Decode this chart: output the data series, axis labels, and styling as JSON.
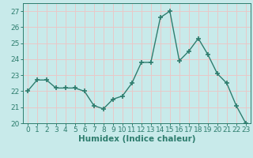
{
  "x": [
    0,
    1,
    2,
    3,
    4,
    5,
    6,
    7,
    8,
    9,
    10,
    11,
    12,
    13,
    14,
    15,
    16,
    17,
    18,
    19,
    20,
    21,
    22,
    23
  ],
  "y": [
    22.0,
    22.7,
    22.7,
    22.2,
    22.2,
    22.2,
    22.0,
    21.1,
    20.9,
    21.5,
    21.7,
    22.5,
    23.8,
    23.8,
    26.6,
    27.0,
    23.9,
    24.5,
    25.3,
    24.3,
    23.1,
    22.5,
    21.1,
    20.0
  ],
  "line_color": "#2e7d6e",
  "marker": "+",
  "markersize": 4,
  "markeredgewidth": 1.2,
  "linewidth": 1.0,
  "bgcolor": "#c8eaea",
  "grid_color": "#e8c8c8",
  "xlabel": "Humidex (Indice chaleur)",
  "ylim": [
    20,
    27.5
  ],
  "yticks": [
    20,
    21,
    22,
    23,
    24,
    25,
    26,
    27
  ],
  "xticks": [
    0,
    1,
    2,
    3,
    4,
    5,
    6,
    7,
    8,
    9,
    10,
    11,
    12,
    13,
    14,
    15,
    16,
    17,
    18,
    19,
    20,
    21,
    22,
    23
  ],
  "tick_color": "#2e7d6e",
  "label_color": "#2e7d6e",
  "xlabel_fontsize": 7.5,
  "tick_fontsize": 6.5,
  "xlim": [
    -0.5,
    23.5
  ]
}
